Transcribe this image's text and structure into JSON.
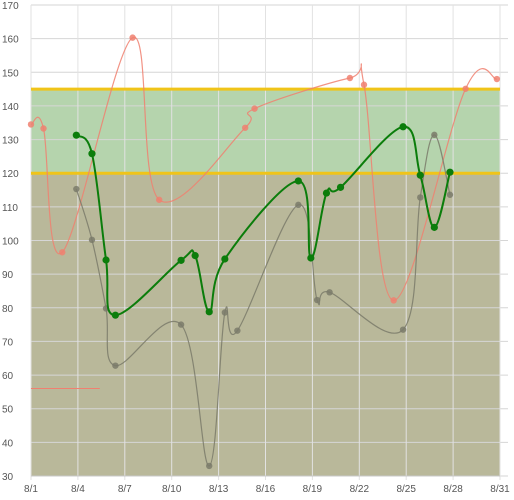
{
  "chart_data": {
    "type": "line",
    "title": "",
    "xlabel": "",
    "ylabel": "",
    "x_ticks": [
      "8/1",
      "8/4",
      "8/7",
      "8/10",
      "8/13",
      "8/16",
      "8/19",
      "8/22",
      "8/25",
      "8/28",
      "8/31"
    ],
    "y_ticks": [
      30,
      40,
      50,
      60,
      70,
      80,
      90,
      100,
      110,
      120,
      130,
      140,
      150,
      160,
      170
    ],
    "xlim": [
      1,
      31
    ],
    "ylim": [
      30,
      170
    ],
    "grid": true,
    "legend": "none",
    "bands": [
      {
        "from": 30,
        "to": 120,
        "color": "#b9b89a"
      },
      {
        "from": 120,
        "to": 145,
        "color": "#b5d4ad"
      }
    ],
    "thresholds": [
      {
        "value": 145,
        "color": "#f0c419"
      },
      {
        "value": 120,
        "color": "#f0c419"
      }
    ],
    "reference_segment": {
      "x": [
        1,
        5.4
      ],
      "value": 56,
      "color": "#f08070"
    },
    "series": [
      {
        "color": "#f08070",
        "points": [
          {
            "x": 1.0,
            "y": 134.5
          },
          {
            "x": 1.8,
            "y": 133.3
          },
          {
            "x": 3.0,
            "y": 96.5
          },
          {
            "x": 7.5,
            "y": 160.3
          },
          {
            "x": 9.2,
            "y": 112.1
          },
          {
            "x": 14.7,
            "y": 133.5
          },
          {
            "x": 15.3,
            "y": 139.2
          },
          {
            "x": 21.4,
            "y": 148.3
          },
          {
            "x": 22.3,
            "y": 146.3
          },
          {
            "x": 24.2,
            "y": 82.2
          },
          {
            "x": 28.8,
            "y": 145.1
          },
          {
            "x": 30.8,
            "y": 148.0
          }
        ]
      },
      {
        "color": "#7a7a6a",
        "points": [
          {
            "x": 3.9,
            "y": 115.3
          },
          {
            "x": 4.9,
            "y": 100.2
          },
          {
            "x": 5.8,
            "y": 79.8
          },
          {
            "x": 6.4,
            "y": 62.8
          },
          {
            "x": 10.6,
            "y": 75.0
          },
          {
            "x": 12.4,
            "y": 33.0
          },
          {
            "x": 13.4,
            "y": 78.6
          },
          {
            "x": 14.2,
            "y": 73.2
          },
          {
            "x": 18.1,
            "y": 110.6
          },
          {
            "x": 19.3,
            "y": 82.3
          },
          {
            "x": 20.1,
            "y": 84.6
          },
          {
            "x": 24.8,
            "y": 73.5
          },
          {
            "x": 25.9,
            "y": 112.8
          },
          {
            "x": 26.8,
            "y": 131.4
          },
          {
            "x": 27.8,
            "y": 113.6
          }
        ]
      },
      {
        "color": "#0b7d0b",
        "points": [
          {
            "x": 3.9,
            "y": 131.3
          },
          {
            "x": 4.9,
            "y": 125.8
          },
          {
            "x": 5.8,
            "y": 94.2
          },
          {
            "x": 6.4,
            "y": 77.8
          },
          {
            "x": 10.6,
            "y": 94.1
          },
          {
            "x": 11.5,
            "y": 95.5
          },
          {
            "x": 12.4,
            "y": 78.8
          },
          {
            "x": 13.4,
            "y": 94.5
          },
          {
            "x": 18.1,
            "y": 117.7
          },
          {
            "x": 18.9,
            "y": 94.8
          },
          {
            "x": 19.9,
            "y": 114.1
          },
          {
            "x": 20.8,
            "y": 115.8
          },
          {
            "x": 24.8,
            "y": 133.8
          },
          {
            "x": 25.9,
            "y": 119.4
          },
          {
            "x": 26.8,
            "y": 103.9
          },
          {
            "x": 27.8,
            "y": 120.3
          }
        ]
      }
    ]
  }
}
